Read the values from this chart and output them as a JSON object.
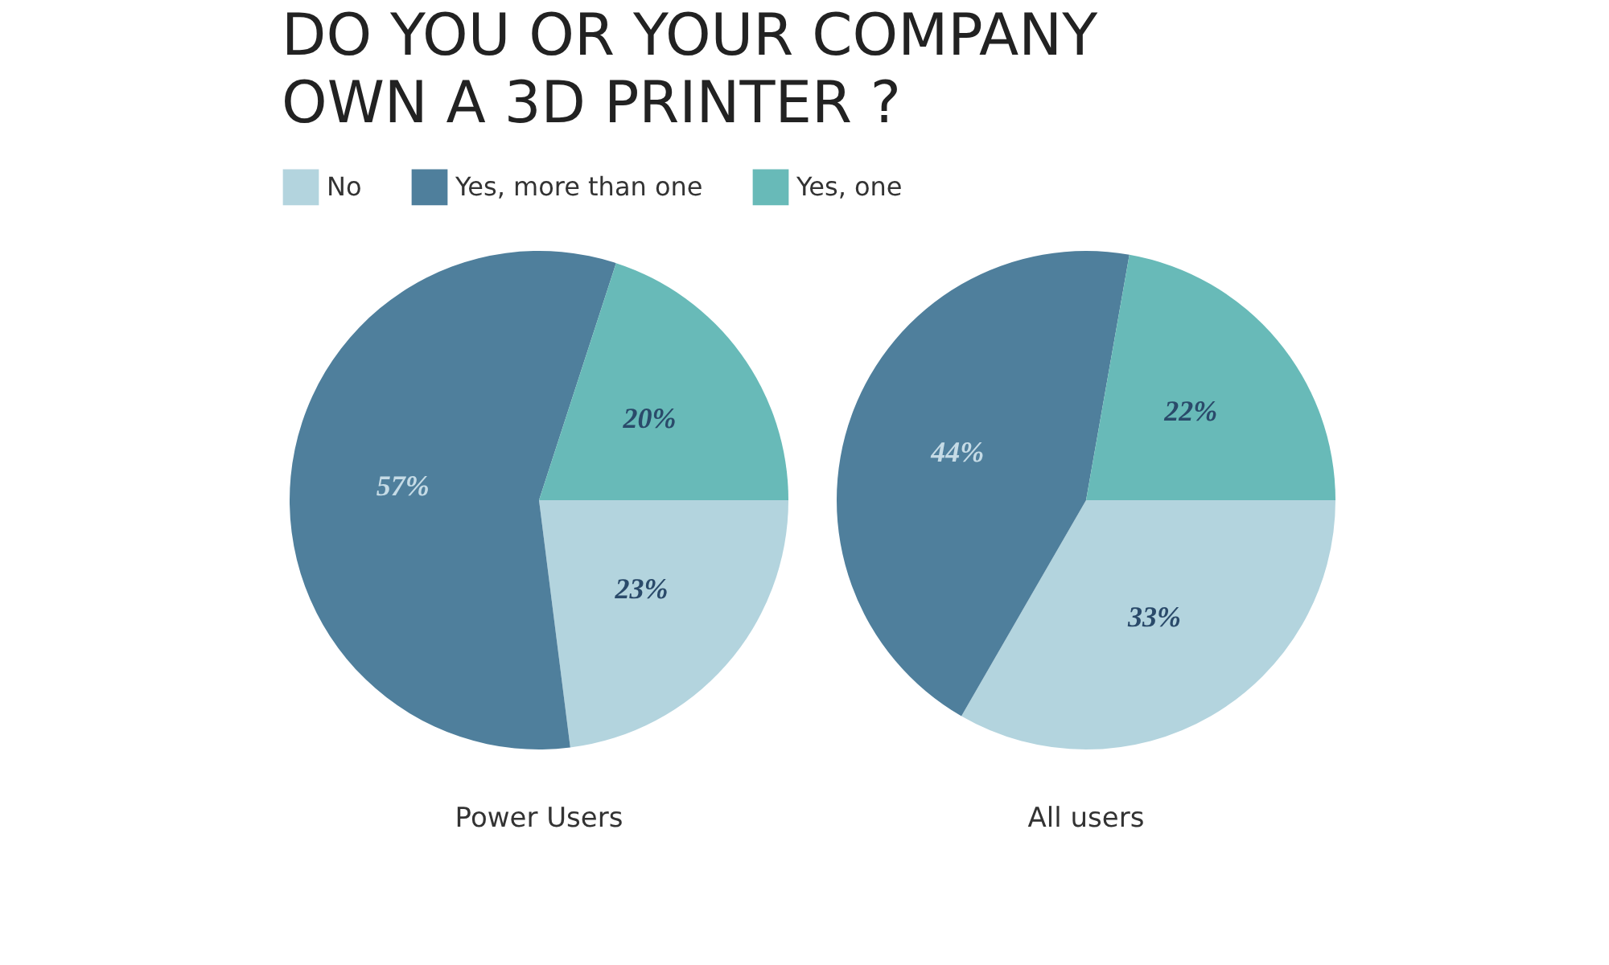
{
  "chart_data": {
    "type": "pie",
    "title": "DO YOU OR YOUR COMPANY OWN A 3D PRINTER ?",
    "legend": "top left",
    "categories": [
      "No",
      "Yes, more than one",
      "Yes, one"
    ],
    "colors": [
      "#b3d4de",
      "#4f7f9c",
      "#68bab8"
    ],
    "series": [
      {
        "name": "Power Users",
        "values": [
          23,
          57,
          20
        ],
        "value_labels": [
          "23%",
          "57%",
          "20%"
        ]
      },
      {
        "name": "All users",
        "values": [
          33,
          44,
          22
        ],
        "value_labels": [
          "33%",
          "44%",
          "22%"
        ]
      }
    ]
  }
}
